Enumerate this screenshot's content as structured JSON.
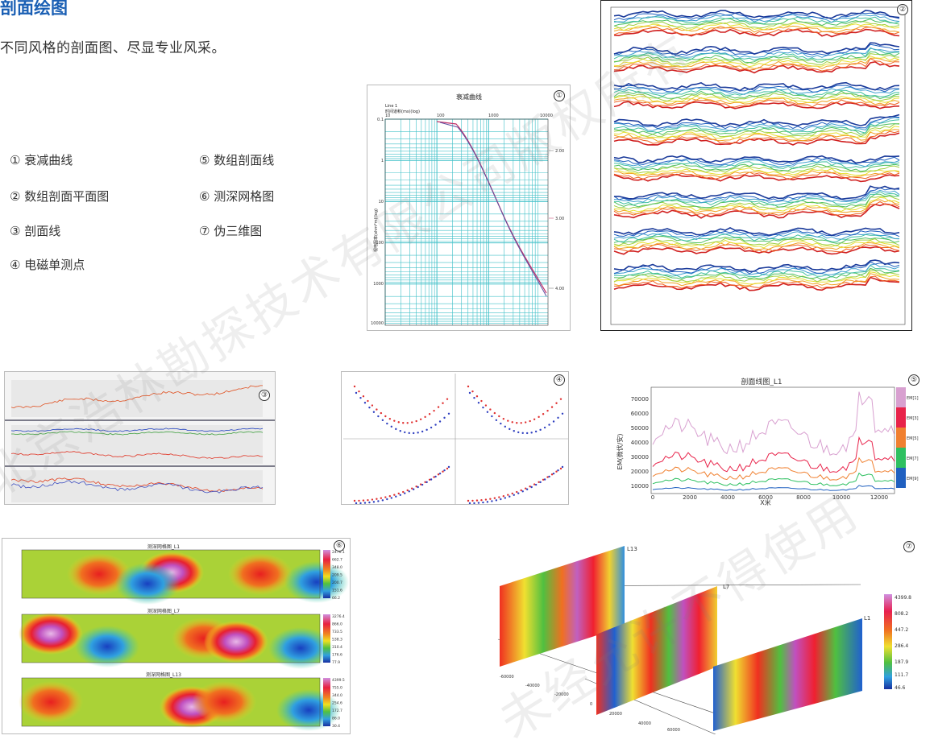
{
  "heading": {
    "title": "剖面绘图",
    "subtitle": "不同风格的剖面图、尽显专业风采。"
  },
  "legend": {
    "col1": [
      "① 衰减曲线",
      "② 数组剖面平面图",
      "③ 剖面线",
      "④ 电磁单测点"
    ],
    "col2": [
      "⑤ 数组剖面线",
      "⑥ 测深网格图",
      "⑦ 伪三维图"
    ]
  },
  "badges": [
    "①",
    "②",
    "③",
    "④",
    "⑤",
    "⑥",
    "⑦"
  ],
  "decay": {
    "title": "衰减曲线",
    "line": "Line 1",
    "xlabel": "时间道积(ms)(log)",
    "ylabel": "视电阻率(ohm*m)(log)",
    "xticks": [
      "10",
      "100",
      "1000",
      "10000"
    ],
    "yticks": [
      "0.1",
      "1",
      "10",
      "100",
      "1000",
      "10000"
    ],
    "right_labels": [
      "2.00",
      "3.00",
      "4.00"
    ]
  },
  "profile_line": {
    "title": "剖面线图_L1",
    "xlabel": "X米",
    "ylabel": "EM(微伏/安)",
    "yticks": [
      "70000",
      "60000",
      "50000",
      "40000",
      "30000",
      "20000",
      "10000"
    ],
    "xticks": [
      "0",
      "2000",
      "4000",
      "6000",
      "8000",
      "10000",
      "12000"
    ],
    "series": [
      "EM[1]",
      "EM[3]",
      "EM[5]",
      "EM[7]",
      "EM[9]"
    ],
    "colors": [
      "#d8a0d0",
      "#e8234a",
      "#f08030",
      "#2ec060",
      "#2060c0"
    ]
  },
  "grid_maps": {
    "titles": [
      "测深网格图_L1",
      "测深网格图_L7",
      "测深网格图_L13"
    ],
    "scale_l1": [
      "2476.1",
      "662.7",
      "348.0",
      "209.5",
      "200.7",
      "151.6",
      "66.2"
    ],
    "scale_l7": [
      "3276.4",
      "866.0",
      "733.5",
      "538.3",
      "310.4",
      "176.6",
      "77.9"
    ],
    "scale_l13": [
      "4399.5",
      "755.0",
      "344.0",
      "254.6",
      "172.7",
      "86.0",
      "30.4"
    ]
  },
  "pseudo3d": {
    "lines": [
      "L13",
      "L7",
      "L1"
    ],
    "scale": [
      "4399.8",
      "808.2",
      "447.2",
      "286.4",
      "187.9",
      "111.7",
      "46.6"
    ],
    "ticks": [
      "-60000",
      "-40000",
      "-20000",
      "0",
      "20000",
      "40000",
      "60000"
    ]
  },
  "watermarks": [
    "北京浩林勘探技术有限公司版权所有",
    "未经允许不得使用"
  ]
}
